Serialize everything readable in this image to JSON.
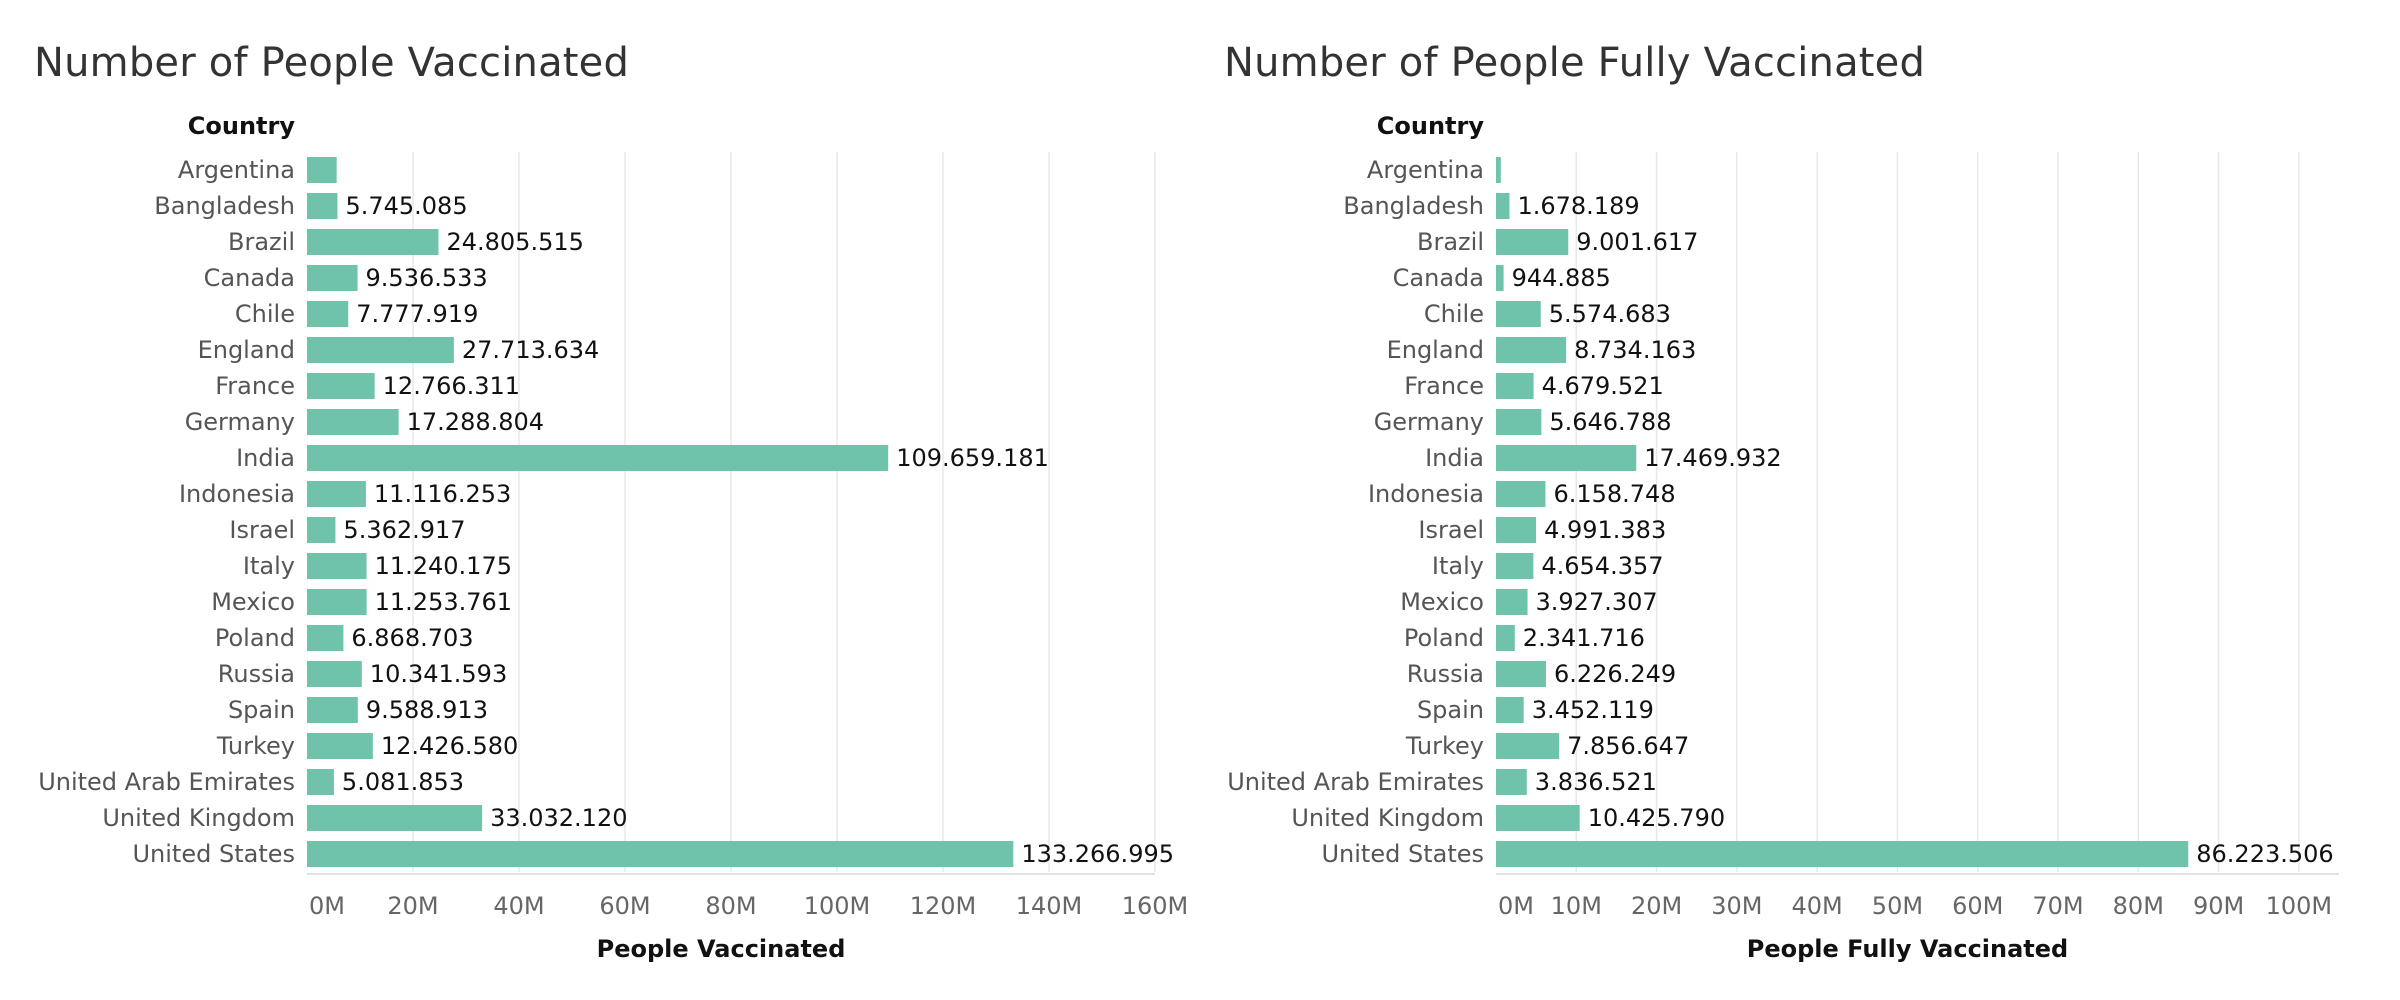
{
  "chart_data": [
    {
      "type": "bar",
      "orientation": "horizontal",
      "title": "Number of People Vaccinated",
      "row_header": "Country",
      "xlabel": "People Vaccinated",
      "xlim": [
        0,
        160000000
      ],
      "xticks": [
        0,
        20000000,
        40000000,
        60000000,
        80000000,
        100000000,
        120000000,
        140000000,
        160000000
      ],
      "xtick_labels": [
        "0M",
        "20M",
        "40M",
        "60M",
        "80M",
        "100M",
        "120M",
        "140M",
        "160M"
      ],
      "grid": true,
      "color": "#6FC3AB",
      "categories": [
        "Argentina",
        "Bangladesh",
        "Brazil",
        "Canada",
        "Chile",
        "England",
        "France",
        "Germany",
        "India",
        "Indonesia",
        "Israel",
        "Italy",
        "Mexico",
        "Poland",
        "Russia",
        "Spain",
        "Turkey",
        "United Arab Emirates",
        "United Kingdom",
        "United States"
      ],
      "values": [
        5600000,
        5745085,
        24805515,
        9536533,
        7777919,
        27713634,
        12766311,
        17288804,
        109659181,
        11116253,
        5362917,
        11240175,
        11253761,
        6868703,
        10341593,
        9588913,
        12426580,
        5081853,
        33032120,
        133266995
      ],
      "value_labels": [
        "",
        "5.745.085",
        "24.805.515",
        "9.536.533",
        "7.777.919",
        "27.713.634",
        "12.766.311",
        "17.288.804",
        "109.659.181",
        "11.116.253",
        "5.362.917",
        "11.240.175",
        "11.253.761",
        "6.868.703",
        "10.341.593",
        "9.588.913",
        "12.426.580",
        "5.081.853",
        "33.032.120",
        "133.266.995"
      ]
    },
    {
      "type": "bar",
      "orientation": "horizontal",
      "title": "Number of People Fully Vaccinated",
      "row_header": "Country",
      "xlabel": "People Fully Vaccinated",
      "xlim": [
        0,
        105000000
      ],
      "xticks": [
        0,
        10000000,
        20000000,
        30000000,
        40000000,
        50000000,
        60000000,
        70000000,
        80000000,
        90000000,
        100000000
      ],
      "xtick_labels": [
        "0M",
        "10M",
        "20M",
        "30M",
        "40M",
        "50M",
        "60M",
        "70M",
        "80M",
        "90M",
        "100M"
      ],
      "grid": true,
      "color": "#6FC3AB",
      "categories": [
        "Argentina",
        "Bangladesh",
        "Brazil",
        "Canada",
        "Chile",
        "England",
        "France",
        "Germany",
        "India",
        "Indonesia",
        "Israel",
        "Italy",
        "Mexico",
        "Poland",
        "Russia",
        "Spain",
        "Turkey",
        "United Arab Emirates",
        "United Kingdom",
        "United States"
      ],
      "values": [
        600000,
        1678189,
        9001617,
        944885,
        5574683,
        8734163,
        4679521,
        5646788,
        17469932,
        6158748,
        4991383,
        4654357,
        3927307,
        2341716,
        6226249,
        3452119,
        7856647,
        3836521,
        10425790,
        86223506
      ],
      "value_labels": [
        "",
        "1.678.189",
        "9.001.617",
        "944.885",
        "5.574.683",
        "8.734.163",
        "4.679.521",
        "5.646.788",
        "17.469.932",
        "6.158.748",
        "4.991.383",
        "4.654.357",
        "3.927.307",
        "2.341.716",
        "6.226.249",
        "3.452.119",
        "7.856.647",
        "3.836.521",
        "10.425.790",
        "86.223.506"
      ]
    }
  ]
}
